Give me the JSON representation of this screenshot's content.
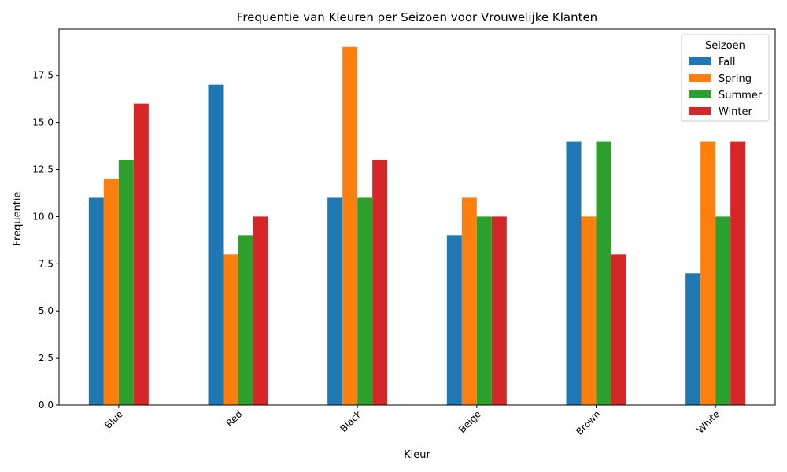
{
  "chart_data": {
    "type": "bar",
    "title": "Frequentie van Kleuren per Seizoen voor Vrouwelijke Klanten",
    "xlabel": "Kleur",
    "ylabel": "Frequentie",
    "categories": [
      "Blue",
      "Red",
      "Black",
      "Beige",
      "Brown",
      "White"
    ],
    "series": [
      {
        "name": "Fall",
        "color": "#1f77b4",
        "values": [
          11,
          17,
          11,
          9,
          14,
          7
        ]
      },
      {
        "name": "Spring",
        "color": "#ff7f0e",
        "values": [
          12,
          8,
          19,
          11,
          10,
          14
        ]
      },
      {
        "name": "Summer",
        "color": "#2ca02c",
        "values": [
          13,
          9,
          11,
          10,
          14,
          10
        ]
      },
      {
        "name": "Winter",
        "color": "#d62728",
        "values": [
          16,
          10,
          13,
          10,
          8,
          14
        ]
      }
    ],
    "ylim": [
      0,
      19.95
    ],
    "yticks": [
      "0.0",
      "2.5",
      "5.0",
      "7.5",
      "10.0",
      "12.5",
      "15.0",
      "17.5"
    ],
    "legend_title": "Seizoen",
    "legend_position": "top-right",
    "grid": false
  }
}
